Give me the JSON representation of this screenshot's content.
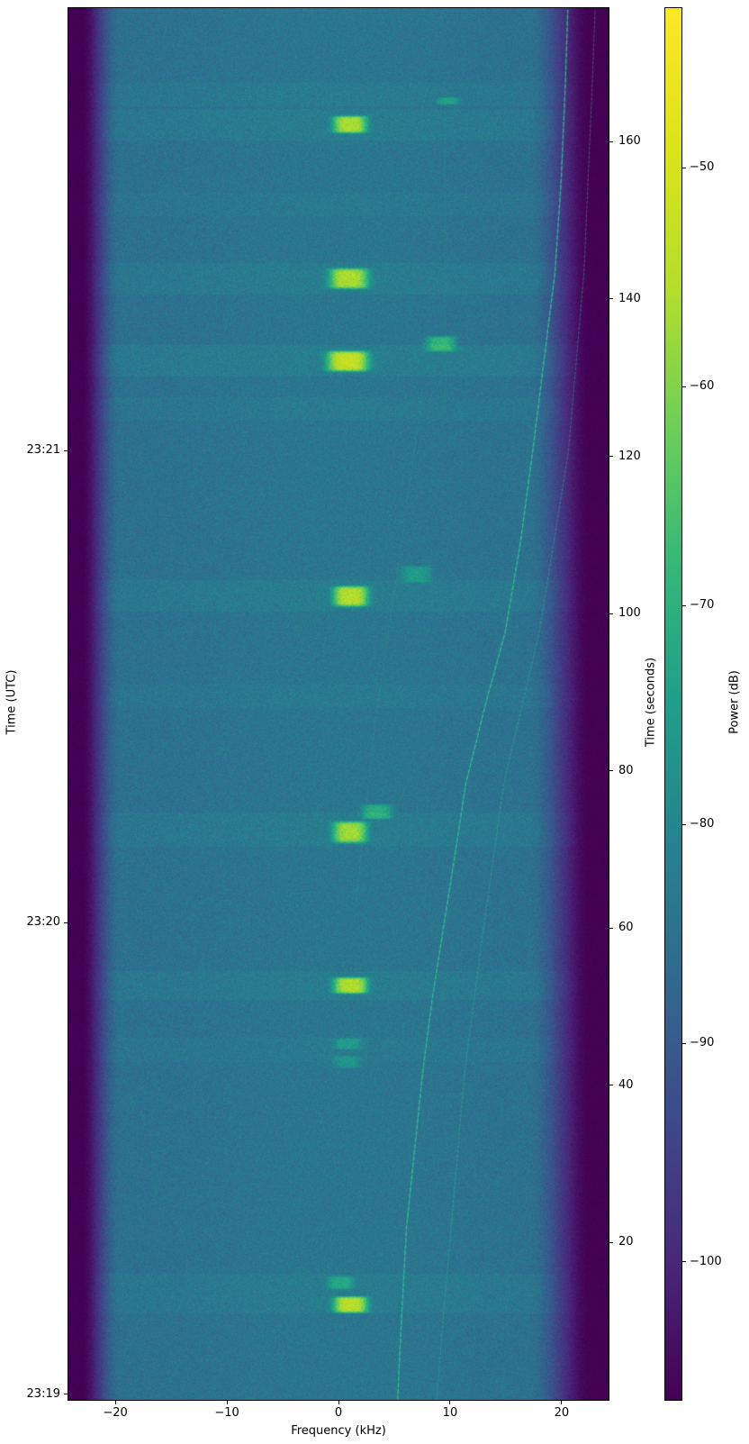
{
  "figure": {
    "kind": "spectrogram",
    "background": "#ffffff"
  },
  "chart_data": {
    "type": "heatmap",
    "title": "",
    "xlabel": "Frequency (kHz)",
    "ylabel_left": "Time (UTC)",
    "ylabel_right": "Time (seconds)",
    "colorbar_label": "Power (dB)",
    "colormap": "viridis",
    "viridis_stops": [
      "#440154",
      "#482878",
      "#3e4989",
      "#31688e",
      "#26828e",
      "#1f9e89",
      "#35b779",
      "#6ece58",
      "#b5de2b",
      "#dce319",
      "#fde725"
    ],
    "x_range_khz": [
      -24.2,
      24.2
    ],
    "time_range_s": [
      0,
      177
    ],
    "power_range_db": [
      -106.3,
      -42.7
    ],
    "background_level_db": -85.3,
    "edge_level_db": -106.5,
    "x_ticks": [
      {
        "value": -20,
        "label": "−20"
      },
      {
        "value": -10,
        "label": "−10"
      },
      {
        "value": 0,
        "label": "0"
      },
      {
        "value": 10,
        "label": "10"
      },
      {
        "value": 20,
        "label": "20"
      }
    ],
    "utc_ticks": [
      {
        "t": 120.7,
        "label": "23:21"
      },
      {
        "t": 60.7,
        "label": "23:20"
      },
      {
        "t": 0.7,
        "label": "23:19"
      }
    ],
    "seconds_ticks": [
      {
        "t": 20,
        "label": "20"
      },
      {
        "t": 40,
        "label": "40"
      },
      {
        "t": 60,
        "label": "60"
      },
      {
        "t": 80,
        "label": "80"
      },
      {
        "t": 100,
        "label": "100"
      },
      {
        "t": 120,
        "label": "120"
      },
      {
        "t": 140,
        "label": "140"
      },
      {
        "t": 160,
        "label": "160"
      }
    ],
    "colorbar_ticks": [
      {
        "value": -50,
        "label": "−50"
      },
      {
        "value": -60,
        "label": "−60"
      },
      {
        "value": -70,
        "label": "−70"
      },
      {
        "value": -80,
        "label": "−80"
      },
      {
        "value": -90,
        "label": "−90"
      },
      {
        "value": -100,
        "label": "−100"
      }
    ],
    "signal_blobs": [
      {
        "f": 1.05,
        "df": 1.4,
        "t": 162.2,
        "dt": 1.05,
        "amp_db": 26
      },
      {
        "f": 0.95,
        "df": 1.6,
        "t": 142.6,
        "dt": 1.25,
        "amp_db": 26
      },
      {
        "f": 0.85,
        "df": 1.7,
        "t": 132.1,
        "dt": 1.25,
        "amp_db": 29
      },
      {
        "f": 9.2,
        "df": 1.2,
        "t": 134.3,
        "dt": 0.95,
        "amp_db": 15
      },
      {
        "f": 9.8,
        "df": 0.9,
        "t": 165.2,
        "dt": 0.45,
        "amp_db": 9
      },
      {
        "f": 7.0,
        "df": 1.2,
        "t": 105.0,
        "dt": 1.0,
        "amp_db": 9
      },
      {
        "f": 1.1,
        "df": 1.45,
        "t": 102.2,
        "dt": 1.25,
        "amp_db": 27
      },
      {
        "f": 3.45,
        "df": 1.2,
        "t": 74.8,
        "dt": 0.9,
        "amp_db": 13
      },
      {
        "f": 1.05,
        "df": 1.4,
        "t": 72.2,
        "dt": 1.3,
        "amp_db": 25
      },
      {
        "f": 1.1,
        "df": 1.4,
        "t": 52.7,
        "dt": 1.0,
        "amp_db": 27
      },
      {
        "f": 0.85,
        "df": 1.1,
        "t": 45.3,
        "dt": 0.7,
        "amp_db": 8
      },
      {
        "f": 0.75,
        "df": 1.05,
        "t": 43.0,
        "dt": 0.75,
        "amp_db": 7
      },
      {
        "f": 0.2,
        "df": 1.1,
        "t": 14.9,
        "dt": 0.8,
        "amp_db": 10
      },
      {
        "f": 1.1,
        "df": 1.4,
        "t": 12.1,
        "dt": 1.0,
        "amp_db": 28
      }
    ],
    "doppler_curves": [
      {
        "alpha": 0.85,
        "width": 1.3,
        "dash": [
          5,
          2
        ],
        "points": [
          [
            5.3,
            0
          ],
          [
            5.6,
            9
          ],
          [
            6.1,
            22
          ],
          [
            7.55,
            41.7
          ],
          [
            8.4,
            51
          ],
          [
            9.4,
            60
          ],
          [
            10.4,
            69
          ],
          [
            11.4,
            78.3
          ],
          [
            13.2,
            88.6
          ],
          [
            14.95,
            97.7
          ],
          [
            16.3,
            109
          ],
          [
            17.4,
            120.6
          ],
          [
            18.4,
            132
          ],
          [
            19.4,
            143.4
          ],
          [
            19.95,
            155
          ],
          [
            20.3,
            166.3
          ],
          [
            20.55,
            176.8
          ]
        ]
      },
      {
        "alpha": 0.35,
        "width": 1.0,
        "dash": [
          3,
          2
        ],
        "points": [
          [
            8.8,
            0
          ],
          [
            9.3,
            9
          ],
          [
            11.3,
            41.7
          ],
          [
            13.0,
            60
          ],
          [
            14.8,
            78.3
          ],
          [
            18.0,
            97.7
          ],
          [
            20.6,
            120.6
          ],
          [
            22.0,
            143.4
          ],
          [
            22.7,
            166
          ],
          [
            23.0,
            176.8
          ]
        ]
      },
      {
        "alpha": 0.15,
        "width": 1.0,
        "dash": [
          3,
          3
        ],
        "points": [
          [
            1.6,
            63.4
          ],
          [
            3.2,
            85.4
          ],
          [
            5.8,
            110.3
          ],
          [
            7.55,
            128.6
          ]
        ]
      }
    ],
    "vertical_faint_line": {
      "f": 9.55,
      "t_from": 127,
      "t_to": 166,
      "alpha": 0.13
    },
    "noise_bands": [
      {
        "t": 166.0,
        "dt": 1.5,
        "amp_db": 1.2
      },
      {
        "t": 162.2,
        "dt": 2.0,
        "amp_db": 1.5
      },
      {
        "t": 152.0,
        "dt": 1.5,
        "amp_db": 0.8
      },
      {
        "t": 142.6,
        "dt": 2.0,
        "amp_db": 1.5
      },
      {
        "t": 132.1,
        "dt": 2.0,
        "amp_db": 1.8
      },
      {
        "t": 126.0,
        "dt": 1.5,
        "amp_db": 1.0
      },
      {
        "t": 102.2,
        "dt": 2.0,
        "amp_db": 1.5
      },
      {
        "t": 89.5,
        "dt": 1.5,
        "amp_db": 0.9
      },
      {
        "t": 72.5,
        "dt": 2.2,
        "amp_db": 1.4
      },
      {
        "t": 52.7,
        "dt": 1.8,
        "amp_db": 1.4
      },
      {
        "t": 44.5,
        "dt": 1.5,
        "amp_db": 0.8
      },
      {
        "t": 13.5,
        "dt": 2.5,
        "amp_db": 1.3
      }
    ],
    "rolloff": {
      "left_full_db_until": -23.1,
      "left_plateau_from": -19.5,
      "right_plateau_until": 17.0,
      "right_full_db_from": 22.7
    },
    "line_color": "#30be96"
  }
}
